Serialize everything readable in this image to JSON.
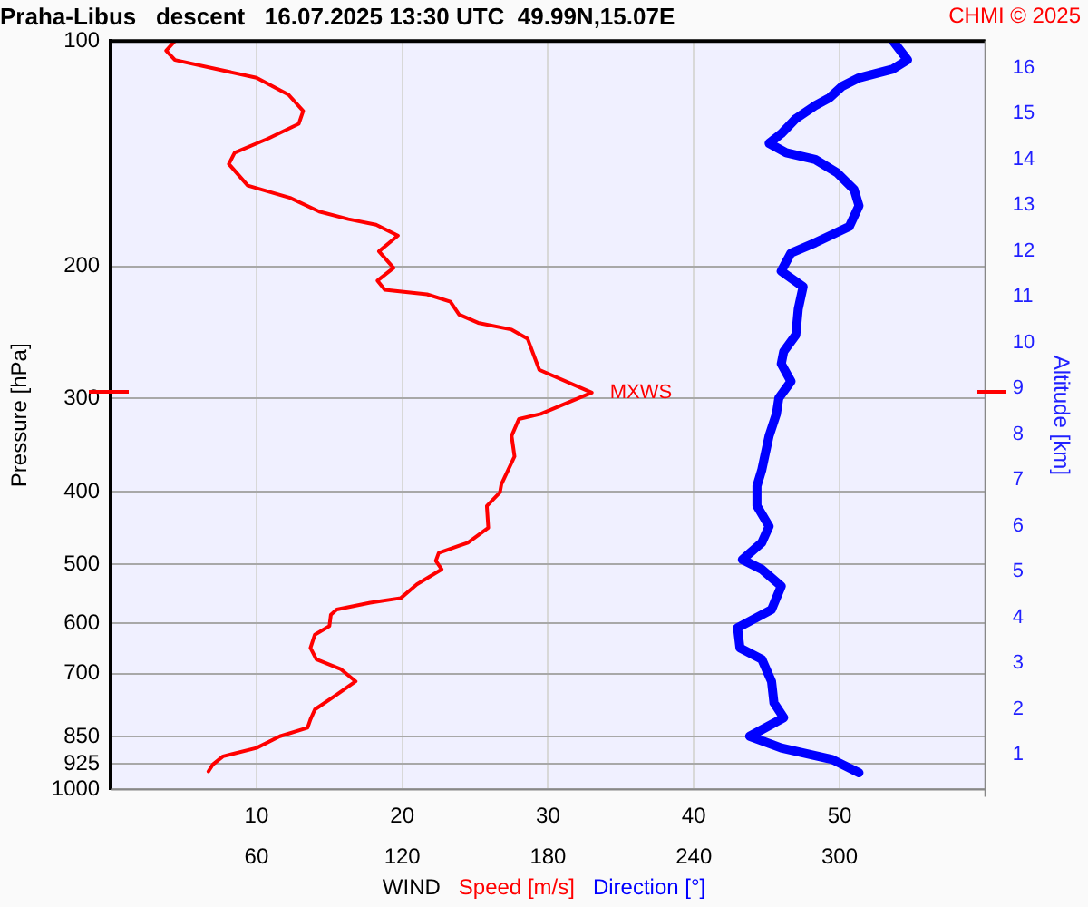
{
  "chart_data": {
    "type": "line",
    "title": "Praha-Libus   descent   16.07.2025 13:30 UTC  49.99N,15.07E",
    "xlabel": "WIND",
    "ylabel": "Pressure [hPa]",
    "y2label": "Altitude [km]",
    "orientation": "horizontal",
    "log": "y",
    "grid": true,
    "legend": "bottom",
    "xlim": [
      0,
      60
    ],
    "xticks": [
      10,
      20,
      30,
      40,
      50
    ],
    "x2lim": [
      0,
      360
    ],
    "x2ticks": [
      60,
      120,
      180,
      240,
      300
    ],
    "ylim": [
      1000,
      100
    ],
    "yticks": [
      100,
      200,
      300,
      400,
      500,
      600,
      700,
      850,
      925,
      1000
    ],
    "y2lim": [
      0.24,
      16.58
    ],
    "y2ticks": [
      1,
      2,
      3,
      4,
      5,
      6,
      7,
      8,
      9,
      10,
      11,
      12,
      13,
      14,
      15,
      16
    ],
    "annotations": [
      {
        "text": "MXWS",
        "x": 33,
        "y": 295
      },
      "CHMI © 2025"
    ],
    "series": [
      {
        "name": "Speed [m/s]",
        "color": "#ff0000",
        "x": [
          100,
          103,
          106,
          112,
          118,
          124,
          129,
          135,
          141,
          146,
          156,
          162,
          169,
          173,
          176,
          182,
          191,
          201,
          209,
          215,
          218,
          223,
          232,
          238,
          243,
          250,
          275,
          295,
          315,
          320,
          337,
          359,
          391,
          401,
          418,
          447,
          468,
          483,
          495,
          508,
          532,
          555,
          563,
          575,
          584,
          605,
          621,
          647,
          670,
          691,
          717,
          747,
          782,
          806,
          827,
          849,
          880,
          903,
          926,
          946
        ],
        "values": [
          4.4,
          3.8,
          4.4,
          10.0,
          12.2,
          13.2,
          12.9,
          10.8,
          8.5,
          8.1,
          9.4,
          12.3,
          14.3,
          16.3,
          18.2,
          19.7,
          18.4,
          19.4,
          18.3,
          18.8,
          21.7,
          23.3,
          23.9,
          25.2,
          27.5,
          28.6,
          29.4,
          33.0,
          29.5,
          28.0,
          27.5,
          27.7,
          26.8,
          26.7,
          25.8,
          25.9,
          24.5,
          22.5,
          22.3,
          22.7,
          21.0,
          19.9,
          17.8,
          15.5,
          15.1,
          15.0,
          14.0,
          13.7,
          14.1,
          15.8,
          16.8,
          15.5,
          14.0,
          13.7,
          13.5,
          11.6,
          10.0,
          7.7,
          7.0,
          6.7
        ]
      },
      {
        "name": "Direction [°]",
        "color": "#0000ff",
        "axis": "x2",
        "x": [
          100,
          106,
          109,
          112,
          115,
          119,
          122,
          127,
          133,
          137,
          141,
          144,
          150,
          158,
          166,
          177,
          186,
          192,
          203,
          213,
          228,
          247,
          260,
          270,
          285,
          300,
          315,
          337,
          374,
          393,
          418,
          445,
          468,
          493,
          508,
          535,
          575,
          608,
          647,
          670,
          717,
          766,
          802,
          849,
          880,
          912,
          950
        ],
        "values": [
          322,
          328,
          322,
          308,
          301,
          296,
          290,
          282,
          276,
          271,
          278,
          290,
          299,
          306,
          308,
          304,
          290,
          280,
          276,
          285,
          283,
          282,
          277,
          276,
          280,
          275,
          274,
          271,
          268,
          266,
          266,
          271,
          268,
          260,
          268,
          276,
          272,
          258,
          259,
          268,
          272,
          273,
          277,
          263,
          276,
          297,
          308
        ]
      }
    ]
  }
}
